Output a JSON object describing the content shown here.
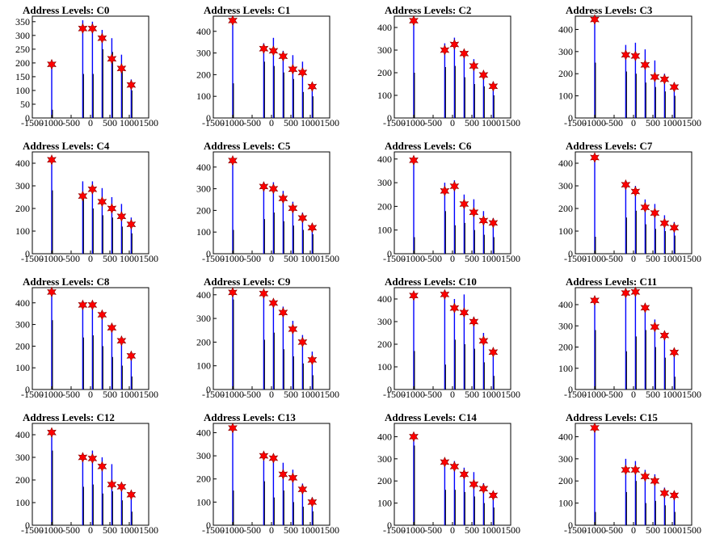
{
  "x_ticks": [
    "-1500",
    "-1000",
    "-500",
    "0",
    "500",
    "1000",
    "1500"
  ],
  "colors": {
    "bars": "#0000ff",
    "dark_bars": "#000000",
    "stars": "#ff0000",
    "star_outline": "#880000"
  },
  "chart_data": [
    {
      "type": "bar",
      "title": "Address Levels: C0",
      "xlim": [
        -1500,
        1500
      ],
      "ylim": [
        0,
        370
      ],
      "yticks": [
        0,
        50,
        100,
        150,
        200,
        250,
        300,
        350
      ],
      "markers": {
        "x": [
          -1000,
          -200,
          50,
          300,
          550,
          800,
          1050
        ],
        "y": [
          195,
          325,
          325,
          290,
          215,
          180,
          120
        ]
      },
      "bars": {
        "x": [
          -1000,
          -980,
          -200,
          -180,
          50,
          70,
          300,
          320,
          550,
          570,
          800,
          820,
          1050,
          1070
        ],
        "y": [
          195,
          30,
          355,
          160,
          350,
          160,
          320,
          250,
          290,
          240,
          230,
          170,
          140,
          100
        ]
      }
    },
    {
      "type": "bar",
      "title": "Address Levels: C1",
      "xlim": [
        -1500,
        1500
      ],
      "ylim": [
        0,
        470
      ],
      "yticks": [
        0,
        100,
        200,
        300,
        400
      ],
      "markers": {
        "x": [
          -1000,
          -200,
          50,
          300,
          550,
          800,
          1050
        ],
        "y": [
          450,
          320,
          310,
          285,
          225,
          210,
          145
        ]
      },
      "bars": {
        "x": [
          -1000,
          -980,
          -200,
          -180,
          50,
          70,
          300,
          320,
          550,
          570,
          800,
          820,
          1050,
          1070
        ],
        "y": [
          460,
          160,
          345,
          260,
          370,
          240,
          310,
          210,
          290,
          180,
          260,
          120,
          160,
          100
        ]
      }
    },
    {
      "type": "bar",
      "title": "Address Levels: C2",
      "xlim": [
        -1500,
        1500
      ],
      "ylim": [
        0,
        450
      ],
      "yticks": [
        0,
        100,
        200,
        300,
        400
      ],
      "markers": {
        "x": [
          -1000,
          -200,
          50,
          300,
          550,
          800,
          1050
        ],
        "y": [
          430,
          300,
          325,
          285,
          230,
          190,
          140
        ]
      },
      "bars": {
        "x": [
          -1000,
          -980,
          -200,
          -180,
          50,
          70,
          300,
          320,
          550,
          570,
          800,
          820,
          1050,
          1070
        ],
        "y": [
          440,
          200,
          330,
          225,
          355,
          230,
          300,
          180,
          260,
          150,
          200,
          140,
          160,
          100
        ]
      }
    },
    {
      "type": "bar",
      "title": "Address Levels: C3",
      "xlim": [
        -1500,
        1500
      ],
      "ylim": [
        0,
        460
      ],
      "yticks": [
        0,
        100,
        200,
        300,
        400
      ],
      "markers": {
        "x": [
          -1000,
          -200,
          50,
          300,
          550,
          800,
          1050
        ],
        "y": [
          445,
          285,
          280,
          240,
          185,
          175,
          140
        ]
      },
      "bars": {
        "x": [
          -1000,
          -980,
          -200,
          -180,
          50,
          70,
          300,
          320,
          550,
          570,
          800,
          820,
          1050,
          1070
        ],
        "y": [
          450,
          250,
          330,
          210,
          340,
          200,
          310,
          160,
          260,
          140,
          200,
          120,
          160,
          100
        ]
      }
    },
    {
      "type": "bar",
      "title": "Address Levels: C4",
      "xlim": [
        -1500,
        1500
      ],
      "ylim": [
        0,
        450
      ],
      "yticks": [
        0,
        100,
        200,
        300,
        400
      ],
      "markers": {
        "x": [
          -1000,
          -200,
          50,
          300,
          550,
          800,
          1050
        ],
        "y": [
          415,
          255,
          285,
          230,
          200,
          165,
          130
        ]
      },
      "bars": {
        "x": [
          -1000,
          -980,
          -200,
          -180,
          50,
          70,
          300,
          320,
          550,
          570,
          800,
          820,
          1050,
          1070
        ],
        "y": [
          420,
          280,
          320,
          250,
          320,
          200,
          290,
          170,
          250,
          160,
          220,
          120,
          160,
          90
        ]
      }
    },
    {
      "type": "bar",
      "title": "Address Levels: C5",
      "xlim": [
        -1500,
        1500
      ],
      "ylim": [
        0,
        470
      ],
      "yticks": [
        0,
        100,
        200,
        300,
        400
      ],
      "markers": {
        "x": [
          -1000,
          -200,
          50,
          300,
          550,
          800,
          1050
        ],
        "y": [
          430,
          310,
          300,
          255,
          210,
          165,
          120
        ]
      },
      "bars": {
        "x": [
          -1000,
          -980,
          -200,
          -180,
          50,
          70,
          300,
          320,
          550,
          570,
          800,
          820,
          1050,
          1070
        ],
        "y": [
          440,
          110,
          330,
          160,
          330,
          190,
          290,
          150,
          240,
          130,
          190,
          110,
          140,
          90
        ]
      }
    },
    {
      "type": "bar",
      "title": "Address Levels: C6",
      "xlim": [
        -1500,
        1500
      ],
      "ylim": [
        0,
        430
      ],
      "yticks": [
        0,
        100,
        200,
        300,
        400
      ],
      "markers": {
        "x": [
          -1000,
          -200,
          50,
          300,
          550,
          800,
          1050
        ],
        "y": [
          395,
          265,
          285,
          210,
          175,
          140,
          130
        ]
      },
      "bars": {
        "x": [
          -1000,
          -980,
          -200,
          -180,
          50,
          70,
          300,
          320,
          550,
          570,
          800,
          820,
          1050,
          1070
        ],
        "y": [
          400,
          70,
          300,
          180,
          310,
          120,
          250,
          130,
          230,
          100,
          180,
          80,
          150,
          70
        ]
      }
    },
    {
      "type": "bar",
      "title": "Address Levels: C7",
      "xlim": [
        -1500,
        1500
      ],
      "ylim": [
        0,
        450
      ],
      "yticks": [
        0,
        100,
        200,
        300,
        400
      ],
      "markers": {
        "x": [
          -1000,
          -200,
          50,
          300,
          550,
          800,
          1050
        ],
        "y": [
          425,
          305,
          275,
          205,
          180,
          135,
          115
        ]
      },
      "bars": {
        "x": [
          -1000,
          -980,
          -200,
          -180,
          50,
          70,
          300,
          320,
          550,
          570,
          800,
          820,
          1050,
          1070
        ],
        "y": [
          430,
          75,
          300,
          160,
          300,
          190,
          240,
          130,
          220,
          110,
          170,
          100,
          140,
          80
        ]
      }
    },
    {
      "type": "bar",
      "title": "Address Levels: C8",
      "xlim": [
        -1500,
        1500
      ],
      "ylim": [
        0,
        470
      ],
      "yticks": [
        0,
        100,
        200,
        300,
        400
      ],
      "markers": {
        "x": [
          -1000,
          -200,
          50,
          300,
          550,
          800,
          1050
        ],
        "y": [
          450,
          390,
          390,
          345,
          285,
          225,
          155
        ]
      },
      "bars": {
        "x": [
          -1000,
          -980,
          -200,
          -180,
          50,
          70,
          300,
          320,
          550,
          570,
          800,
          820,
          1050,
          1070
        ],
        "y": [
          460,
          320,
          390,
          240,
          380,
          250,
          350,
          200,
          300,
          150,
          240,
          110,
          170,
          60
        ]
      }
    },
    {
      "type": "bar",
      "title": "Address Levels: C9",
      "xlim": [
        -1500,
        1500
      ],
      "ylim": [
        0,
        430
      ],
      "yticks": [
        0,
        100,
        200,
        300,
        400
      ],
      "markers": {
        "x": [
          -1000,
          -200,
          50,
          300,
          550,
          800,
          1050
        ],
        "y": [
          410,
          405,
          365,
          325,
          255,
          200,
          125
        ]
      },
      "bars": {
        "x": [
          -1000,
          -980,
          -200,
          -180,
          50,
          70,
          300,
          320,
          550,
          570,
          800,
          820,
          1050,
          1070
        ],
        "y": [
          410,
          380,
          400,
          210,
          380,
          240,
          350,
          170,
          290,
          140,
          230,
          110,
          160,
          60
        ]
      }
    },
    {
      "type": "bar",
      "title": "Address Levels: C10",
      "xlim": [
        -1500,
        1500
      ],
      "ylim": [
        0,
        450
      ],
      "yticks": [
        0,
        100,
        200,
        300,
        400
      ],
      "markers": {
        "x": [
          -1000,
          -200,
          50,
          300,
          550,
          800,
          1050
        ],
        "y": [
          415,
          420,
          360,
          340,
          300,
          215,
          165
        ]
      },
      "bars": {
        "x": [
          -1000,
          -980,
          -200,
          -180,
          50,
          70,
          300,
          320,
          550,
          570,
          800,
          820,
          1050,
          1070
        ],
        "y": [
          420,
          170,
          430,
          110,
          400,
          220,
          420,
          200,
          320,
          180,
          250,
          120,
          180,
          60
        ]
      }
    },
    {
      "type": "bar",
      "title": "Address Levels: C11",
      "xlim": [
        -1500,
        1500
      ],
      "ylim": [
        0,
        480
      ],
      "yticks": [
        0,
        100,
        200,
        300,
        400
      ],
      "markers": {
        "x": [
          -1000,
          -200,
          50,
          300,
          550,
          800,
          1050
        ],
        "y": [
          420,
          455,
          460,
          385,
          295,
          255,
          175
        ]
      },
      "bars": {
        "x": [
          -1000,
          -980,
          -200,
          -180,
          50,
          70,
          300,
          320,
          550,
          570,
          800,
          820,
          1050,
          1070
        ],
        "y": [
          420,
          280,
          460,
          180,
          470,
          250,
          380,
          280,
          330,
          200,
          270,
          150,
          170,
          60
        ]
      }
    },
    {
      "type": "bar",
      "title": "Address Levels: C12",
      "xlim": [
        -1500,
        1500
      ],
      "ylim": [
        0,
        450
      ],
      "yticks": [
        0,
        100,
        200,
        300,
        400
      ],
      "markers": {
        "x": [
          -1000,
          -200,
          50,
          300,
          550,
          800,
          1050
        ],
        "y": [
          410,
          300,
          295,
          260,
          180,
          170,
          135
        ]
      },
      "bars": {
        "x": [
          -1000,
          -980,
          -200,
          -180,
          50,
          70,
          300,
          320,
          550,
          570,
          800,
          820,
          1050,
          1070
        ],
        "y": [
          410,
          330,
          310,
          170,
          330,
          180,
          300,
          140,
          270,
          150,
          180,
          110,
          150,
          60
        ]
      }
    },
    {
      "type": "bar",
      "title": "Address Levels: C13",
      "xlim": [
        -1500,
        1500
      ],
      "ylim": [
        0,
        440
      ],
      "yticks": [
        0,
        100,
        200,
        300,
        400
      ],
      "markers": {
        "x": [
          -1000,
          -200,
          50,
          300,
          550,
          800,
          1050
        ],
        "y": [
          420,
          300,
          290,
          220,
          205,
          155,
          100
        ]
      },
      "bars": {
        "x": [
          -1000,
          -980,
          -200,
          -180,
          50,
          70,
          300,
          320,
          550,
          570,
          800,
          820,
          1050,
          1070
        ],
        "y": [
          420,
          150,
          280,
          190,
          300,
          120,
          270,
          150,
          240,
          100,
          180,
          80,
          120,
          60
        ]
      }
    },
    {
      "type": "bar",
      "title": "Address Levels: C14",
      "xlim": [
        -1500,
        1500
      ],
      "ylim": [
        0,
        460
      ],
      "yticks": [
        0,
        100,
        200,
        300,
        400
      ],
      "markers": {
        "x": [
          -1000,
          -200,
          50,
          300,
          550,
          800,
          1050
        ],
        "y": [
          400,
          285,
          265,
          230,
          185,
          165,
          135
        ]
      },
      "bars": {
        "x": [
          -1000,
          -980,
          -200,
          -180,
          50,
          70,
          300,
          320,
          550,
          570,
          800,
          820,
          1050,
          1070
        ],
        "y": [
          400,
          360,
          290,
          160,
          290,
          160,
          260,
          150,
          240,
          130,
          190,
          100,
          150,
          80
        ]
      }
    },
    {
      "type": "bar",
      "title": "Address Levels: C15",
      "xlim": [
        -1500,
        1500
      ],
      "ylim": [
        0,
        460
      ],
      "yticks": [
        0,
        100,
        200,
        300,
        400
      ],
      "markers": {
        "x": [
          -1000,
          -200,
          50,
          300,
          550,
          800,
          1050
        ],
        "y": [
          440,
          250,
          250,
          220,
          200,
          145,
          135
        ]
      },
      "bars": {
        "x": [
          -1000,
          -980,
          -200,
          -180,
          50,
          70,
          300,
          320,
          550,
          570,
          800,
          820,
          1050,
          1070
        ],
        "y": [
          440,
          60,
          300,
          150,
          290,
          200,
          250,
          100,
          230,
          110,
          170,
          90,
          150,
          60
        ]
      }
    }
  ]
}
